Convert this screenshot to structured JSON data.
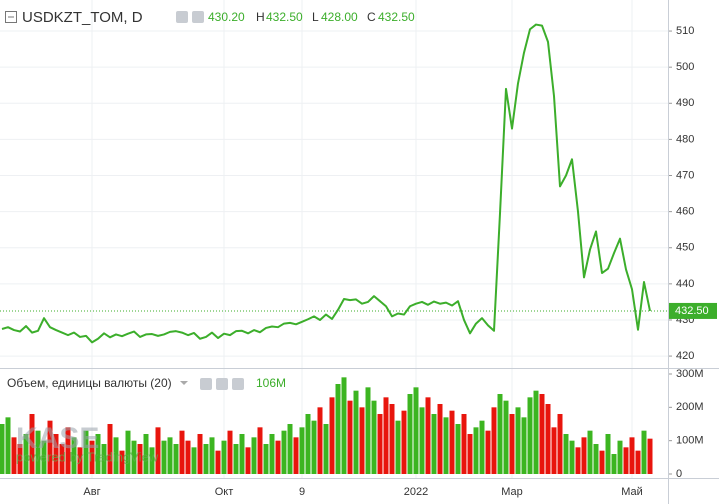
{
  "chart_data": [
    {
      "type": "line",
      "title": "USDKZT_TOM, D",
      "header": {
        "open": "430.20",
        "high_label": "H",
        "high": "432.50",
        "low_label": "L",
        "low": "428.00",
        "close_label": "C",
        "close": "432.50"
      },
      "categories": [
        null,
        null,
        null,
        null,
        null,
        null,
        null,
        null,
        null,
        null,
        null,
        null,
        null,
        null,
        null,
        "Авг",
        null,
        null,
        null,
        null,
        null,
        null,
        null,
        null,
        null,
        null,
        null,
        null,
        null,
        null,
        null,
        null,
        null,
        null,
        null,
        null,
        null,
        "Окт",
        null,
        null,
        null,
        null,
        null,
        null,
        null,
        null,
        null,
        null,
        null,
        null,
        "9",
        null,
        null,
        null,
        null,
        null,
        null,
        null,
        null,
        null,
        null,
        null,
        null,
        null,
        null,
        null,
        null,
        null,
        null,
        "2022",
        null,
        null,
        null,
        null,
        null,
        null,
        null,
        null,
        null,
        null,
        null,
        null,
        null,
        null,
        null,
        "Мар",
        null,
        null,
        null,
        null,
        null,
        null,
        null,
        null,
        null,
        null,
        null,
        null,
        null,
        null,
        null,
        null,
        null,
        null,
        null,
        "Май",
        null,
        null,
        null
      ],
      "values": [
        427.5,
        428.0,
        427.2,
        426.8,
        428.3,
        426.5,
        427.0,
        430.5,
        428.0,
        427.2,
        426.5,
        425.8,
        426.5,
        425.3,
        425.6,
        423.8,
        424.8,
        426.3,
        425.2,
        426.0,
        425.5,
        426.2,
        426.8,
        425.3,
        426.0,
        426.1,
        425.6,
        426.0,
        426.7,
        426.9,
        426.5,
        425.8,
        426.4,
        424.8,
        425.3,
        426.5,
        425.0,
        426.2,
        425.8,
        426.9,
        427.0,
        426.3,
        427.2,
        426.6,
        427.8,
        428.2,
        428.0,
        429.0,
        429.2,
        428.8,
        429.5,
        430.2,
        431.0,
        430.0,
        431.5,
        430.3,
        432.8,
        435.8,
        435.5,
        435.7,
        434.5,
        435.0,
        436.6,
        435.2,
        433.8,
        431.0,
        431.8,
        431.5,
        433.8,
        434.5,
        435.0,
        434.2,
        435.1,
        434.5,
        434.8,
        434.0,
        435.2,
        430.0,
        426.3,
        429.0,
        430.5,
        428.5,
        427.0,
        459.5,
        494.0,
        483.0,
        495.5,
        504.0,
        510.5,
        511.8,
        511.5,
        507.0,
        492.0,
        467.0,
        470.0,
        474.5,
        460.0,
        441.8,
        449.5,
        454.5,
        443.0,
        444.2,
        448.5,
        452.5,
        444.0,
        438.5,
        427.3,
        440.5,
        432.5
      ],
      "color": "#3cae2b",
      "ylim": [
        416.7,
        518.6
      ],
      "yticks": [
        420,
        430,
        440,
        450,
        460,
        470,
        480,
        490,
        500,
        510
      ],
      "grid": true
    },
    {
      "type": "bar",
      "title": "Объем, единицы валюты (20)",
      "last_label": "106M",
      "values": [
        150000000,
        170000000,
        110000000,
        90000000,
        120000000,
        180000000,
        130000000,
        100000000,
        160000000,
        120000000,
        90000000,
        140000000,
        110000000,
        80000000,
        130000000,
        100000000,
        120000000,
        90000000,
        150000000,
        110000000,
        70000000,
        130000000,
        100000000,
        90000000,
        120000000,
        80000000,
        140000000,
        100000000,
        110000000,
        90000000,
        130000000,
        100000000,
        80000000,
        120000000,
        90000000,
        110000000,
        70000000,
        100000000,
        130000000,
        90000000,
        120000000,
        80000000,
        110000000,
        140000000,
        90000000,
        120000000,
        100000000,
        130000000,
        150000000,
        110000000,
        140000000,
        180000000,
        160000000,
        200000000,
        150000000,
        230000000,
        270000000,
        290000000,
        220000000,
        250000000,
        200000000,
        260000000,
        220000000,
        180000000,
        230000000,
        210000000,
        160000000,
        190000000,
        240000000,
        260000000,
        200000000,
        230000000,
        180000000,
        210000000,
        170000000,
        190000000,
        150000000,
        180000000,
        120000000,
        140000000,
        160000000,
        130000000,
        200000000,
        240000000,
        220000000,
        180000000,
        200000000,
        170000000,
        230000000,
        250000000,
        240000000,
        210000000,
        140000000,
        180000000,
        120000000,
        100000000,
        80000000,
        110000000,
        130000000,
        90000000,
        70000000,
        120000000,
        60000000,
        100000000,
        80000000,
        110000000,
        70000000,
        130000000,
        106000000
      ],
      "up_color": "#3cb521",
      "down_color": "#e8150d",
      "ylim": [
        -12000000,
        315000000
      ],
      "yticks": [
        0,
        {
          "value": 100000000,
          "label": "100M"
        },
        {
          "value": 200000000,
          "label": "200M"
        },
        {
          "value": 300000000,
          "label": "300M"
        }
      ]
    }
  ],
  "watermark": {
    "logo": "KASE",
    "text": "powered by TradingView"
  }
}
